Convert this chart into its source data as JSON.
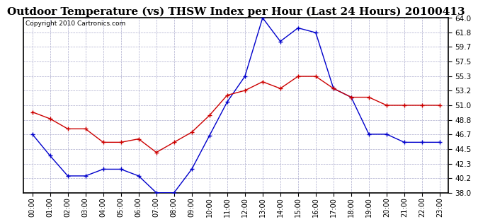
{
  "title": "Outdoor Temperature (vs) THSW Index per Hour (Last 24 Hours) 20100413",
  "copyright_text": "Copyright 2010 Cartronics.com",
  "hours": [
    "00:00",
    "01:00",
    "02:00",
    "03:00",
    "04:00",
    "05:00",
    "06:00",
    "07:00",
    "08:00",
    "09:00",
    "10:00",
    "11:00",
    "12:00",
    "13:00",
    "14:00",
    "15:00",
    "16:00",
    "17:00",
    "18:00",
    "19:00",
    "20:00",
    "21:00",
    "22:00",
    "23:00"
  ],
  "temp_red": [
    50.0,
    49.0,
    47.5,
    47.5,
    45.5,
    45.5,
    46.0,
    44.0,
    45.5,
    47.0,
    49.5,
    52.5,
    53.2,
    54.5,
    53.5,
    55.3,
    55.3,
    53.5,
    52.2,
    52.2,
    51.0,
    51.0,
    51.0,
    51.0
  ],
  "thsw_blue": [
    46.7,
    43.5,
    40.5,
    40.5,
    41.5,
    41.5,
    40.5,
    38.0,
    38.0,
    41.5,
    46.5,
    51.5,
    55.3,
    64.0,
    60.5,
    62.5,
    61.8,
    53.5,
    52.2,
    46.7,
    46.7,
    45.5,
    45.5,
    45.5
  ],
  "ylim": [
    38.0,
    64.0
  ],
  "yticks": [
    38.0,
    40.2,
    42.3,
    44.5,
    46.7,
    48.8,
    51.0,
    53.2,
    55.3,
    57.5,
    59.7,
    61.8,
    64.0
  ],
  "bg_color": "#ffffff",
  "grid_color": "#aaaacc",
  "red_color": "#cc0000",
  "blue_color": "#0000cc",
  "title_fontsize": 11,
  "copyright_fontsize": 6.5
}
